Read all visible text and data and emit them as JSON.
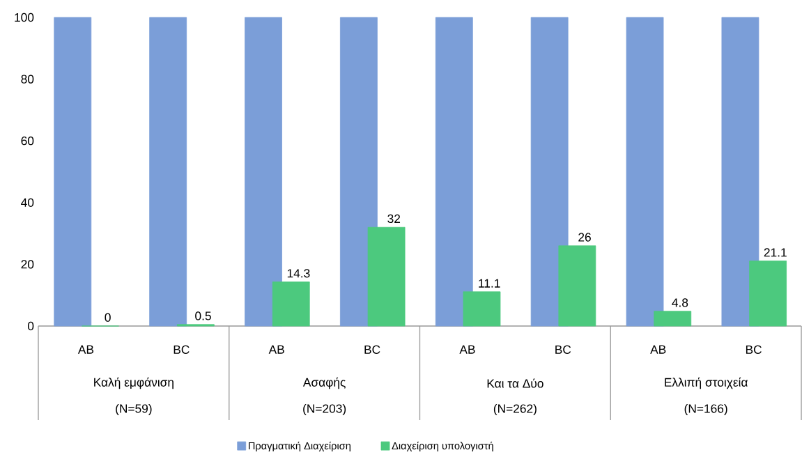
{
  "chart_data": {
    "type": "bar",
    "categories": [
      "AB",
      "BC",
      "AB",
      "BC",
      "AB",
      "BC",
      "AB",
      "BC"
    ],
    "series": [
      {
        "name": "Πραγματική Διαχείριση",
        "color": "#7b9ed8",
        "values": [
          100,
          100,
          100,
          100,
          100,
          100,
          100,
          100
        ]
      },
      {
        "name": "Διαχείριση υπολογιστή",
        "color": "#4cc97e",
        "values": [
          0,
          0.5,
          14.3,
          32,
          11.1,
          26,
          4.8,
          21.1
        ],
        "value_labels": [
          "0",
          "0.5",
          "14.3",
          "32",
          "11.1",
          "26",
          "4.8",
          "21.1"
        ]
      }
    ],
    "annotations": [
      "Καλή εμφάνιση",
      "(N=59)",
      "Ασαφής",
      "(N=203)",
      "Και τα Δύο",
      "(N=262)",
      "Ελλιπή στοιχεία",
      "(N=166)"
    ],
    "ylim": [
      0,
      100
    ],
    "yticks": [
      0,
      20,
      40,
      60,
      80,
      100
    ],
    "grid": false,
    "legend": "bottom"
  }
}
